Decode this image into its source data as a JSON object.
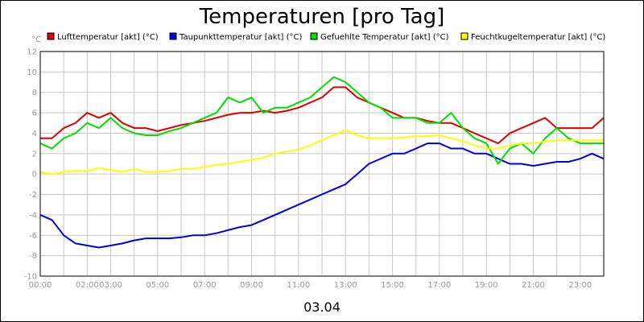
{
  "chart_data": {
    "type": "line",
    "title": "Temperaturen [pro Tag]",
    "date_label": "03.04",
    "ylabel": "°C",
    "ylim": [
      -10,
      12
    ],
    "yticks": [
      12,
      10,
      8,
      6,
      4,
      2,
      0,
      -2,
      -4,
      -6,
      -8,
      -10
    ],
    "xlim": [
      0,
      24
    ],
    "xtick_labels": [
      "00:00",
      "02:00",
      "03:00",
      "05:00",
      "07:00",
      "09:00",
      "11:00",
      "13:00",
      "15:00",
      "17:00",
      "19:00",
      "21:00",
      "23:00"
    ],
    "xtick_positions": [
      0,
      2,
      3,
      5,
      7,
      9,
      11,
      13,
      15,
      17,
      19,
      21,
      23
    ],
    "grid": true,
    "legend_position": "top",
    "series": [
      {
        "name": "Lufttemperatur [akt] (°C)",
        "color": "#e00000",
        "x": [
          0,
          0.5,
          1,
          1.5,
          2,
          2.5,
          3,
          3.5,
          4,
          4.5,
          5,
          5.5,
          6,
          6.5,
          7,
          7.5,
          8,
          8.5,
          9,
          9.5,
          10,
          10.5,
          11,
          11.5,
          12,
          12.5,
          13,
          13.5,
          14,
          14.5,
          15,
          15.5,
          16,
          16.5,
          17,
          17.5,
          18,
          18.5,
          19,
          19.5,
          20,
          20.5,
          21,
          21.5,
          22,
          22.5,
          23,
          23.5,
          24
        ],
        "y": [
          3.5,
          3.5,
          4.5,
          5.0,
          6.0,
          5.5,
          6.0,
          5.0,
          4.5,
          4.5,
          4.2,
          4.5,
          4.8,
          5.0,
          5.2,
          5.5,
          5.8,
          6.0,
          6.0,
          6.2,
          6.0,
          6.2,
          6.5,
          7.0,
          7.5,
          8.5,
          8.5,
          7.5,
          7.0,
          6.5,
          6.0,
          5.5,
          5.5,
          5.2,
          5.0,
          5.0,
          4.5,
          4.0,
          3.5,
          3.0,
          4.0,
          4.5,
          5.0,
          5.5,
          4.5,
          4.5,
          4.5,
          4.5,
          5.5
        ]
      },
      {
        "name": "Taupunkttemperatur [akt] (°C)",
        "color": "#0000e0",
        "x": [
          0,
          0.5,
          1,
          1.5,
          2,
          2.5,
          3,
          3.5,
          4,
          4.5,
          5,
          5.5,
          6,
          6.5,
          7,
          7.5,
          8,
          8.5,
          9,
          9.5,
          10,
          10.5,
          11,
          11.5,
          12,
          12.5,
          13,
          13.5,
          14,
          14.5,
          15,
          15.5,
          16,
          16.5,
          17,
          17.5,
          18,
          18.5,
          19,
          19.5,
          20,
          20.5,
          21,
          21.5,
          22,
          22.5,
          23,
          23.5,
          24
        ],
        "y": [
          -4.0,
          -4.5,
          -6.0,
          -6.8,
          -7.0,
          -7.2,
          -7.0,
          -6.8,
          -6.5,
          -6.3,
          -6.3,
          -6.3,
          -6.2,
          -6.0,
          -6.0,
          -5.8,
          -5.5,
          -5.2,
          -5.0,
          -4.5,
          -4.0,
          -3.5,
          -3.0,
          -2.5,
          -2.0,
          -1.5,
          -1.0,
          0.0,
          1.0,
          1.5,
          2.0,
          2.0,
          2.5,
          3.0,
          3.0,
          2.5,
          2.5,
          2.0,
          2.0,
          1.5,
          1.0,
          1.0,
          0.8,
          1.0,
          1.2,
          1.2,
          1.5,
          2.0,
          1.5
        ]
      },
      {
        "name": "Gefuehlte Temperatur [akt] (°C)",
        "color": "#00e000",
        "x": [
          0,
          0.5,
          1,
          1.5,
          2,
          2.5,
          3,
          3.5,
          4,
          4.5,
          5,
          5.5,
          6,
          6.5,
          7,
          7.5,
          8,
          8.5,
          9,
          9.5,
          10,
          10.5,
          11,
          11.5,
          12,
          12.5,
          13,
          13.5,
          14,
          14.5,
          15,
          15.5,
          16,
          16.5,
          17,
          17.5,
          18,
          18.5,
          19,
          19.5,
          20,
          20.5,
          21,
          21.5,
          22,
          22.5,
          23,
          23.5,
          24
        ],
        "y": [
          3.0,
          2.5,
          3.5,
          4.0,
          5.0,
          4.5,
          5.5,
          4.5,
          4.0,
          3.8,
          3.8,
          4.2,
          4.5,
          5.0,
          5.5,
          6.0,
          7.5,
          7.0,
          7.5,
          6.0,
          6.5,
          6.5,
          7.0,
          7.5,
          8.5,
          9.5,
          9.0,
          8.0,
          7.0,
          6.5,
          5.5,
          5.5,
          5.5,
          5.0,
          5.0,
          6.0,
          4.5,
          3.5,
          3.0,
          1.0,
          2.5,
          3.0,
          2.0,
          3.5,
          4.5,
          3.5,
          3.0,
          3.0,
          3.0
        ]
      },
      {
        "name": "Feuchtkugeltemperatur [akt] (°C)",
        "color": "#ffff00",
        "x": [
          0,
          0.5,
          1,
          1.5,
          2,
          2.5,
          3,
          3.5,
          4,
          4.5,
          5,
          5.5,
          6,
          6.5,
          7,
          7.5,
          8,
          8.5,
          9,
          9.5,
          10,
          10.5,
          11,
          11.5,
          12,
          12.5,
          13,
          13.5,
          14,
          14.5,
          15,
          15.5,
          16,
          16.5,
          17,
          17.5,
          18,
          18.5,
          19,
          19.5,
          20,
          20.5,
          21,
          21.5,
          22,
          22.5,
          23,
          23.5,
          24
        ],
        "y": [
          0.2,
          0.0,
          0.2,
          0.3,
          0.3,
          0.6,
          0.4,
          0.2,
          0.5,
          0.2,
          0.2,
          0.3,
          0.5,
          0.5,
          0.7,
          0.9,
          1.0,
          1.2,
          1.4,
          1.6,
          2.0,
          2.2,
          2.4,
          2.8,
          3.3,
          3.8,
          4.3,
          3.8,
          3.5,
          3.5,
          3.5,
          3.6,
          3.7,
          3.7,
          3.8,
          3.5,
          3.2,
          2.8,
          2.5,
          2.5,
          2.8,
          3.0,
          3.0,
          3.2,
          3.3,
          3.3,
          3.3,
          3.3,
          3.3
        ]
      }
    ]
  }
}
